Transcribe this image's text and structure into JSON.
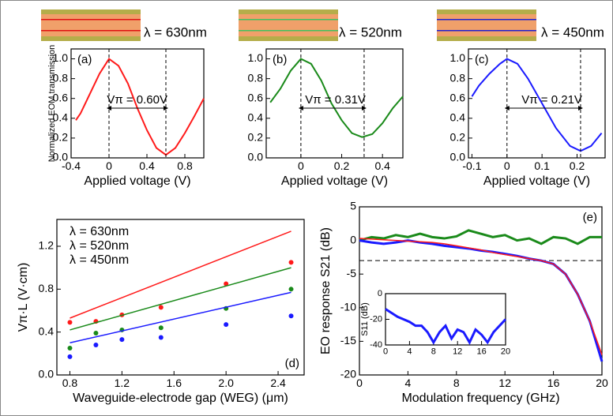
{
  "chart_data": [
    {
      "type": "line",
      "label": "(a)",
      "wavelength_label": "λ = 630nm",
      "color": "#ff1a1a",
      "annotation": "Vπ = 0.60V",
      "peak_x": 0,
      "vpi": 0.6,
      "x": [
        -0.35,
        -0.3,
        -0.2,
        -0.1,
        0,
        0.1,
        0.2,
        0.3,
        0.4,
        0.5,
        0.6,
        0.7,
        0.8,
        0.9,
        1.0
      ],
      "values": [
        0.38,
        0.45,
        0.65,
        0.85,
        1.0,
        0.93,
        0.75,
        0.5,
        0.28,
        0.1,
        0.03,
        0.1,
        0.25,
        0.42,
        0.6
      ],
      "xlim": [
        -0.4,
        1.0
      ],
      "ylim": [
        0,
        1.1
      ],
      "xticks": [
        -0.4,
        0,
        0.4,
        0.8
      ],
      "yticks": [
        {
          "value": 0,
          "label": "0.0"
        },
        0.2,
        0.4,
        0.6,
        0.8,
        {
          "value": 1,
          "label": "1.0"
        }
      ],
      "xlabel": "Applied voltage (V)",
      "ylabel": "Normalized EOM transmission"
    },
    {
      "type": "line",
      "label": "(b)",
      "wavelength_label": "λ = 520nm",
      "color": "#1a8a1a",
      "annotation": "Vπ = 0.31V",
      "peak_x": 0,
      "vpi": 0.31,
      "x": [
        -0.15,
        -0.1,
        -0.05,
        0,
        0.05,
        0.1,
        0.15,
        0.2,
        0.25,
        0.3,
        0.35,
        0.4,
        0.45,
        0.5
      ],
      "values": [
        0.56,
        0.7,
        0.88,
        1.0,
        0.95,
        0.78,
        0.55,
        0.38,
        0.25,
        0.21,
        0.24,
        0.35,
        0.5,
        0.62
      ],
      "xlim": [
        -0.17,
        0.5
      ],
      "ylim": [
        0,
        1.1
      ],
      "xticks": [
        0,
        0.2,
        0.4
      ],
      "yticks": [
        {
          "value": 0,
          "label": "0.0"
        },
        0.2,
        0.4,
        0.6,
        0.8,
        {
          "value": 1,
          "label": "1.0"
        }
      ],
      "xlabel": "Applied voltage (V)"
    },
    {
      "type": "line",
      "label": "(c)",
      "wavelength_label": "λ = 450nm",
      "color": "#1a1aff",
      "annotation": "Vπ = 0.21V",
      "peak_x": 0,
      "vpi": 0.21,
      "x": [
        -0.1,
        -0.08,
        -0.05,
        -0.02,
        0,
        0.03,
        0.06,
        0.1,
        0.14,
        0.18,
        0.21,
        0.24,
        0.27
      ],
      "values": [
        0.62,
        0.73,
        0.85,
        0.95,
        1.0,
        0.95,
        0.8,
        0.55,
        0.3,
        0.12,
        0.07,
        0.12,
        0.25
      ],
      "xlim": [
        -0.11,
        0.28
      ],
      "ylim": [
        0,
        1.1
      ],
      "xticks": [
        -0.1,
        0,
        0.1,
        0.2
      ],
      "yticks": [
        {
          "value": 0,
          "label": "0.0"
        },
        0.2,
        0.4,
        0.6,
        0.8,
        {
          "value": 1,
          "label": "1.0"
        }
      ],
      "xlabel": "Applied voltage (V)"
    },
    {
      "type": "scatter",
      "label": "(d)",
      "x": [
        0.8,
        1.0,
        1.2,
        1.5,
        2.0,
        2.5
      ],
      "fit_x": [
        0.8,
        2.5
      ],
      "series": [
        {
          "name": "λ = 630nm",
          "color": "#ff1a1a",
          "values": [
            0.49,
            0.5,
            0.56,
            0.63,
            0.85,
            1.05
          ],
          "fit": [
            0.53,
            1.34
          ]
        },
        {
          "name": "λ = 520nm",
          "color": "#1a8a1a",
          "values": [
            0.25,
            0.39,
            0.42,
            0.44,
            0.62,
            0.8
          ],
          "fit": [
            0.42,
            1.0
          ]
        },
        {
          "name": "λ = 450nm",
          "color": "#1a1aff",
          "values": [
            0.17,
            0.28,
            0.33,
            0.35,
            0.47,
            0.55
          ],
          "fit": [
            0.3,
            0.77
          ]
        }
      ],
      "xlim": [
        0.7,
        2.6
      ],
      "ylim": [
        0,
        1.45
      ],
      "xticks": [
        0.8,
        1.2,
        1.6,
        {
          "value": 2,
          "label": "2.0"
        },
        2.4
      ],
      "yticks": [
        {
          "value": 0,
          "label": "0.0"
        },
        0.4,
        0.8,
        1.2
      ],
      "xlabel": "Waveguide-electrode gap (WEG) (μm)",
      "ylabel": "Vπ·L (V·cm)"
    },
    {
      "type": "line",
      "label": "(e)",
      "hline": -3,
      "x": [
        0,
        1,
        2,
        3,
        4,
        5,
        6,
        7,
        8,
        9,
        10,
        11,
        12,
        13,
        14,
        15,
        16,
        17,
        18,
        19,
        20
      ],
      "series": [
        {
          "color": "#1a8a1a",
          "values": [
            0,
            0.5,
            0.3,
            0.8,
            0.5,
            1,
            0.5,
            0.3,
            0.6,
            1.5,
            1,
            0.5,
            0.8,
            0,
            0.3,
            -0.5,
            0.5,
            0.3,
            -0.5,
            0.5,
            0.5
          ]
        },
        {
          "color": "#1a1aff",
          "values": [
            0,
            -0.3,
            -0.5,
            -0.3,
            0,
            -0.3,
            -0.5,
            -0.8,
            -1,
            -1.2,
            -1.5,
            -1.7,
            -2,
            -2.3,
            -2.7,
            -3,
            -3.5,
            -5,
            -8,
            -12,
            -18
          ]
        },
        {
          "color": "#ff1a1a",
          "values": [
            0.3,
            0.2,
            0.1,
            0,
            -0.1,
            -0.2,
            -0.3,
            -0.5,
            -0.8,
            -1.1,
            -1.4,
            -1.8,
            -2.1,
            -2.4,
            -2.7,
            -3,
            -3.5,
            -5,
            -8,
            -12,
            -17
          ]
        }
      ],
      "xlim": [
        0,
        20
      ],
      "ylim": [
        -20,
        5
      ],
      "xticks": [
        0,
        4,
        8,
        12,
        16,
        20
      ],
      "yticks": [
        -20,
        -15,
        -10,
        -5,
        0,
        5
      ],
      "xlabel": "Modulation frequency (GHz)",
      "ylabel": "EO response S21 (dB)"
    },
    {
      "type": "line",
      "x": [
        0,
        1,
        2,
        3,
        4,
        5,
        6,
        7,
        8,
        9,
        10,
        11,
        12,
        13,
        14,
        15,
        16,
        17,
        18,
        19,
        20
      ],
      "series": [
        {
          "color": "#1a1aff",
          "values": [
            -12,
            -15,
            -18,
            -20,
            -22,
            -25,
            -25,
            -30,
            -38,
            -30,
            -25,
            -35,
            -28,
            -30,
            -38,
            -28,
            -32,
            -38,
            -30,
            -25,
            -20
          ]
        }
      ],
      "xlim": [
        0,
        20
      ],
      "ylim": [
        -40,
        0
      ],
      "xticks": [
        0,
        4,
        8,
        12,
        16,
        20
      ],
      "yticks": [
        -40,
        -20,
        0
      ],
      "ylabel": "S11 (dB)"
    }
  ]
}
